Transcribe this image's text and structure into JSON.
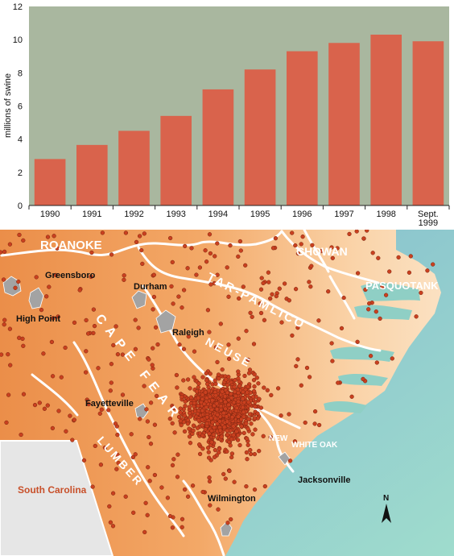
{
  "chart_data": {
    "type": "bar",
    "categories": [
      "1990",
      "1991",
      "1992",
      "1993",
      "1994",
      "1995",
      "1996",
      "1997",
      "1998",
      "Sept. 1999"
    ],
    "values": [
      2.8,
      3.65,
      4.5,
      5.4,
      7.0,
      8.2,
      9.3,
      9.8,
      10.3,
      9.9
    ],
    "title": "",
    "xlabel": "",
    "ylabel": "millions of swine",
    "ylim": [
      0,
      12
    ],
    "yticks": [
      0,
      2,
      4,
      6,
      8,
      10,
      12
    ],
    "grid": false,
    "bar_color": "#d9634c",
    "plot_background": "#a9b79f"
  },
  "map": {
    "basins": [
      "ROANOKE",
      "CHOWAN",
      "TAR-PAMLICO",
      "PASQUOTANK",
      "CAPE FEAR",
      "NEUSE",
      "NEW",
      "WHITE OAK",
      "LUMBER"
    ],
    "cities": [
      "Greensboro",
      "Durham",
      "High Point",
      "Raleigh",
      "Fayetteville",
      "Wilmington",
      "Jacksonville"
    ],
    "state_label": "South Carolina",
    "north_label": "N",
    "colors": {
      "land_inland": "#eb8e49",
      "land_coastal": "#fad3a8",
      "ocean": "#8fcfc5",
      "south_carolina": "#e6e6e6",
      "farm_dot": "#c9401f",
      "basin_line": "#ffffff",
      "city_area": "#a3a3a3",
      "state_label": "#c8502a"
    }
  }
}
